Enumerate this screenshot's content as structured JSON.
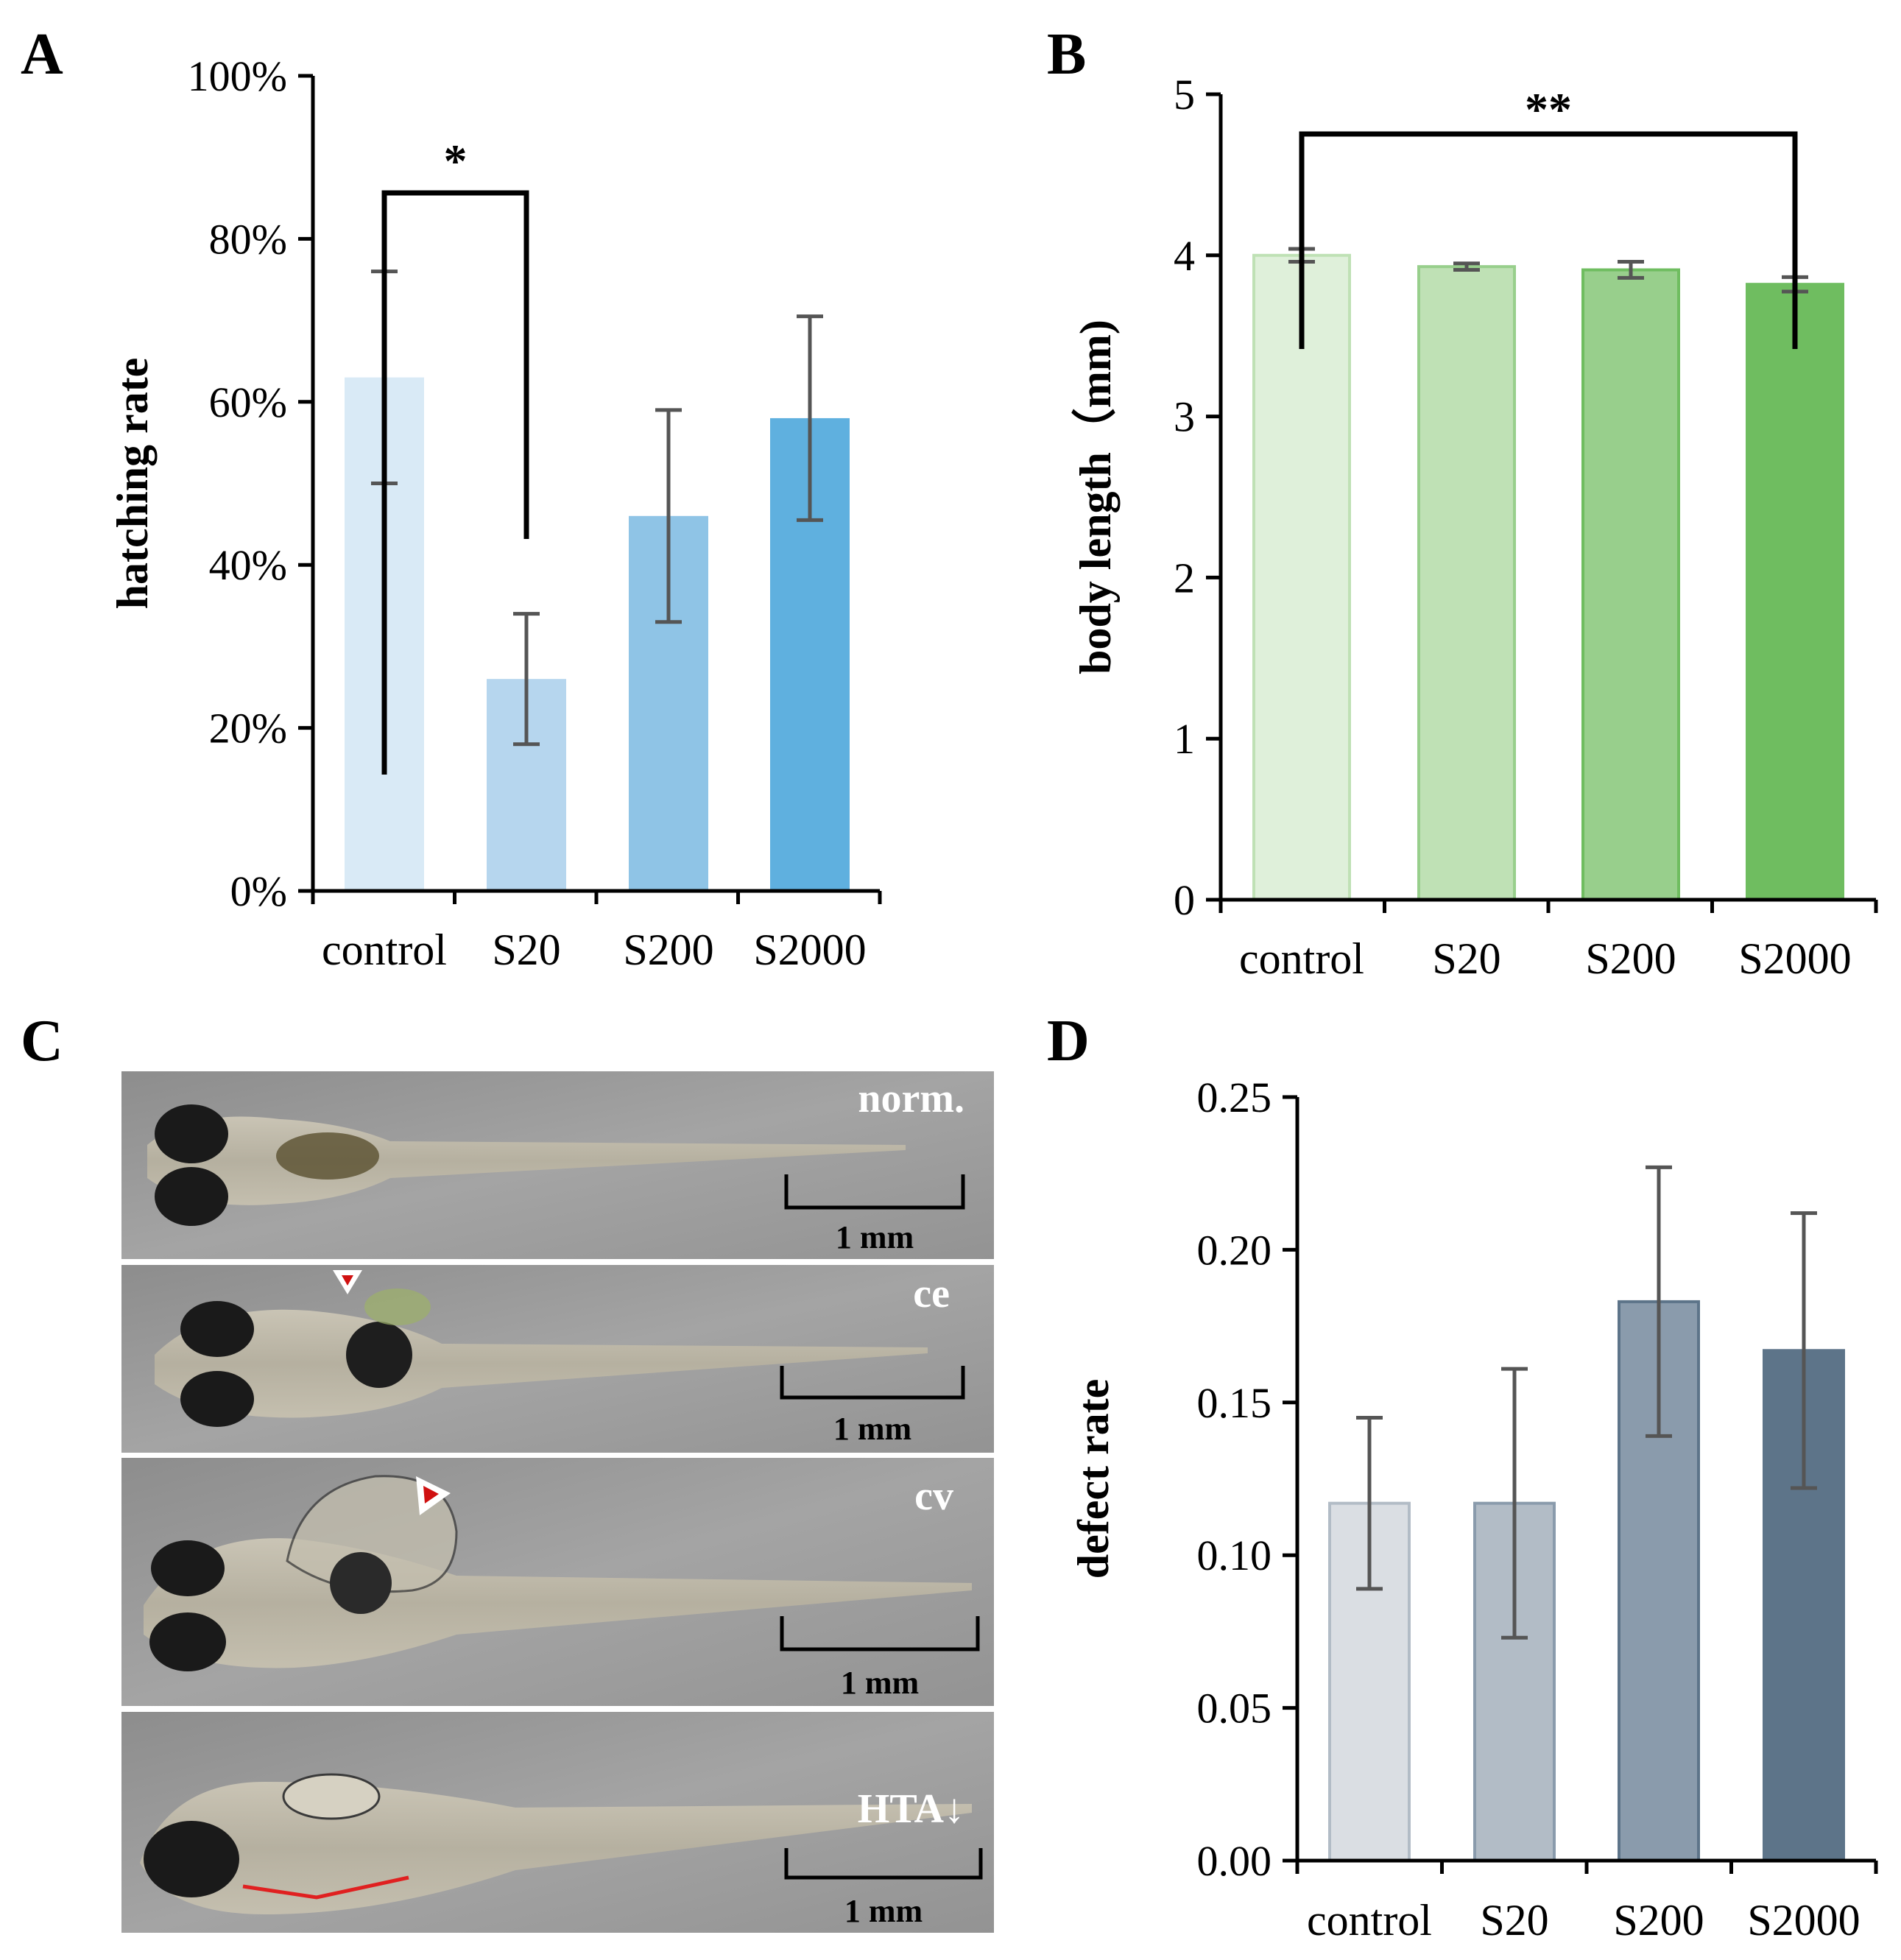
{
  "panels": {
    "a": "A",
    "b": "B",
    "c": "C",
    "d": "D"
  },
  "chart_data": [
    {
      "id": "A",
      "type": "bar",
      "categories": [
        "control",
        "S20",
        "S200",
        "S2000"
      ],
      "values": [
        0.63,
        0.26,
        0.46,
        0.58
      ],
      "errors": [
        0.13,
        0.08,
        0.13,
        0.125
      ],
      "colors": [
        "#d9eaf6",
        "#b6d6ee",
        "#8fc4e6",
        "#5fb0df"
      ],
      "ylabel": "hatching rate",
      "ylim": [
        0,
        1
      ],
      "yticks": [
        0,
        0.2,
        0.4,
        0.6,
        0.8,
        1.0
      ],
      "ytick_labels": [
        "0%",
        "20%",
        "40%",
        "60%",
        "80%",
        "100%"
      ],
      "significance": {
        "from": 0,
        "to": 1,
        "label": "*"
      }
    },
    {
      "id": "B",
      "type": "bar",
      "categories": [
        "control",
        "S20",
        "S200",
        "S2000"
      ],
      "values": [
        4.0,
        3.93,
        3.91,
        3.82
      ],
      "errors": [
        0.04,
        0.02,
        0.05,
        0.045
      ],
      "colors": [
        "#dff0da",
        "#bfe1b5",
        "#98cf8c",
        "#6fbd60"
      ],
      "ylabel": "body length（mm)",
      "ylim": [
        0,
        5
      ],
      "yticks": [
        0,
        1,
        2,
        3,
        4,
        5
      ],
      "ytick_labels": [
        "0",
        "1",
        "2",
        "3",
        "4",
        "5"
      ],
      "significance": {
        "from": 0,
        "to": 3,
        "label": "**"
      }
    },
    {
      "id": "D",
      "type": "bar",
      "categories": [
        "control",
        "S20",
        "S200",
        "S2000"
      ],
      "values": [
        0.117,
        0.117,
        0.183,
        0.167
      ],
      "errors": [
        0.028,
        0.044,
        0.044,
        0.045
      ],
      "colors": [
        "#dadee3",
        "#b2bcc6",
        "#8a9bac",
        "#5d7489"
      ],
      "ylabel": "defect rate",
      "ylim": [
        0,
        0.25
      ],
      "yticks": [
        0,
        0.05,
        0.1,
        0.15,
        0.2,
        0.25
      ],
      "ytick_labels": [
        "0.00",
        "0.05",
        "0.10",
        "0.15",
        "0.20",
        "0.25"
      ]
    }
  ],
  "photos": [
    {
      "tag": "norm.",
      "scale": "1 mm"
    },
    {
      "tag": "ce",
      "scale": "1 mm"
    },
    {
      "tag": "cv",
      "scale": "1 mm"
    },
    {
      "tag": "HTA↓",
      "scale": "1 mm"
    }
  ]
}
